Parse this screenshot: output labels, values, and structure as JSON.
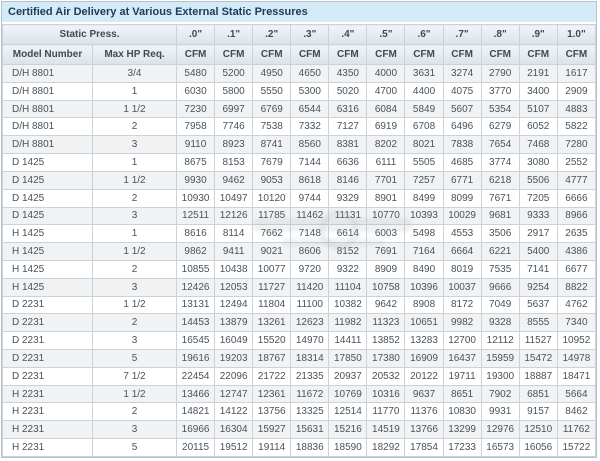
{
  "title": "Certified Air Delivery at Various External Static Pressures",
  "header": {
    "static_press_label": "Static Press.",
    "model_col": "Model Number",
    "hp_col": "Max HP Req.",
    "cfm_label": "CFM",
    "pressures": [
      ".0\"",
      ".1\"",
      ".2\"",
      ".3\"",
      ".4\"",
      ".5\"",
      ".6\"",
      ".7\"",
      ".8\"",
      ".9\"",
      "1.0\""
    ]
  },
  "colors": {
    "title_bg": "#d5eaf7",
    "title_text": "#1c3b5a",
    "header_bg": "#e2e9ee",
    "stripe_bg": "#f1f2f4",
    "border": "#ccd3d8",
    "text": "#4b5257"
  },
  "watermark": {
    "present": true,
    "description": "faint-gray-logo-overlay"
  },
  "rows": [
    {
      "model": "D/H 8801",
      "max_hp": "3/4",
      "cfm": [
        5480,
        5200,
        4950,
        4650,
        4350,
        4000,
        3631,
        3274,
        2790,
        2191,
        1617
      ]
    },
    {
      "model": "D/H 8801",
      "max_hp": "1",
      "cfm": [
        6030,
        5800,
        5550,
        5300,
        5020,
        4700,
        4400,
        4075,
        3770,
        3400,
        2909
      ]
    },
    {
      "model": "D/H 8801",
      "max_hp": "1 1/2",
      "cfm": [
        7230,
        6997,
        6769,
        6544,
        6316,
        6084,
        5849,
        5607,
        5354,
        5107,
        4883
      ]
    },
    {
      "model": "D/H 8801",
      "max_hp": "2",
      "cfm": [
        7958,
        7746,
        7538,
        7332,
        7127,
        6919,
        6708,
        6496,
        6279,
        6052,
        5822
      ]
    },
    {
      "model": "D/H 8801",
      "max_hp": "3",
      "cfm": [
        9110,
        8923,
        8741,
        8560,
        8381,
        8202,
        8021,
        7838,
        7654,
        7468,
        7280
      ]
    },
    {
      "model": "D 1425",
      "max_hp": "1",
      "cfm": [
        8675,
        8153,
        7679,
        7144,
        6636,
        6111,
        5505,
        4685,
        3774,
        3080,
        2552
      ]
    },
    {
      "model": "D 1425",
      "max_hp": "1 1/2",
      "cfm": [
        9930,
        9462,
        9053,
        8618,
        8146,
        7701,
        7257,
        6771,
        6218,
        5506,
        4777
      ]
    },
    {
      "model": "D 1425",
      "max_hp": "2",
      "cfm": [
        10930,
        10497,
        10120,
        9744,
        9329,
        8901,
        8499,
        8099,
        7671,
        7205,
        6666
      ]
    },
    {
      "model": "D 1425",
      "max_hp": "3",
      "cfm": [
        12511,
        12126,
        11785,
        11462,
        11131,
        10770,
        10393,
        10029,
        9681,
        9333,
        8966
      ]
    },
    {
      "model": "H 1425",
      "max_hp": "1",
      "cfm": [
        8616,
        8114,
        7662,
        7148,
        6614,
        6003,
        5498,
        4553,
        3506,
        2917,
        2635
      ]
    },
    {
      "model": "H 1425",
      "max_hp": "1 1/2",
      "cfm": [
        9862,
        9411,
        9021,
        8606,
        8152,
        7691,
        7164,
        6664,
        6221,
        5400,
        4386
      ]
    },
    {
      "model": "H 1425",
      "max_hp": "2",
      "cfm": [
        10855,
        10438,
        10077,
        9720,
        9322,
        8909,
        8490,
        8019,
        7535,
        7141,
        6677
      ]
    },
    {
      "model": "H 1425",
      "max_hp": "3",
      "cfm": [
        12426,
        12053,
        11727,
        11420,
        11104,
        10758,
        10396,
        10037,
        9666,
        9254,
        8822
      ]
    },
    {
      "model": "D 2231",
      "max_hp": "1 1/2",
      "cfm": [
        13131,
        12494,
        11804,
        11100,
        10382,
        9642,
        8908,
        8172,
        7049,
        5637,
        4762
      ]
    },
    {
      "model": "D 2231",
      "max_hp": "2",
      "cfm": [
        14453,
        13879,
        13261,
        12623,
        11982,
        11323,
        10651,
        9982,
        9328,
        8555,
        7340
      ]
    },
    {
      "model": "D 2231",
      "max_hp": "3",
      "cfm": [
        16545,
        16049,
        15520,
        14970,
        14411,
        13852,
        13283,
        12700,
        12112,
        11527,
        10952
      ]
    },
    {
      "model": "D 2231",
      "max_hp": "5",
      "cfm": [
        19616,
        19203,
        18767,
        18314,
        17850,
        17380,
        16909,
        16437,
        15959,
        15472,
        14978
      ]
    },
    {
      "model": "D 2231",
      "max_hp": "7 1/2",
      "cfm": [
        22454,
        22096,
        21722,
        21335,
        20937,
        20532,
        20122,
        19711,
        19300,
        18887,
        18471
      ]
    },
    {
      "model": "H 2231",
      "max_hp": "1 1/2",
      "cfm": [
        13466,
        12747,
        12361,
        11672,
        10769,
        10316,
        9637,
        8651,
        7902,
        6851,
        5664
      ]
    },
    {
      "model": "H 2231",
      "max_hp": "2",
      "cfm": [
        14821,
        14122,
        13756,
        13325,
        12514,
        11770,
        11376,
        10830,
        9931,
        9157,
        8462
      ]
    },
    {
      "model": "H 2231",
      "max_hp": "3",
      "cfm": [
        16966,
        16304,
        15927,
        15631,
        15216,
        14519,
        13766,
        13299,
        12976,
        12510,
        11762
      ]
    },
    {
      "model": "H 2231",
      "max_hp": "5",
      "cfm": [
        20115,
        19512,
        19114,
        18836,
        18590,
        18292,
        17854,
        17233,
        16573,
        16056,
        15722
      ]
    }
  ]
}
